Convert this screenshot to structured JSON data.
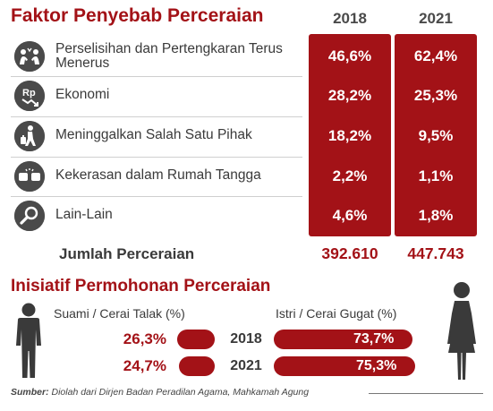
{
  "header": {
    "title": "Faktor Penyebab Perceraian",
    "year_a": "2018",
    "year_b": "2021"
  },
  "chart_data": [
    {
      "type": "table",
      "title": "Faktor Penyebab Perceraian",
      "columns": [
        "2018",
        "2021"
      ],
      "rows": [
        {
          "label": "Perselisihan dan Pertengkaran Terus Menerus",
          "icon": "arguing-people-icon",
          "values": [
            "46,6%",
            "62,4%"
          ]
        },
        {
          "label": "Ekonomi",
          "icon": "money-rp-down-icon",
          "values": [
            "28,2%",
            "25,3%"
          ]
        },
        {
          "label": "Meninggalkan Salah Satu Pihak",
          "icon": "person-leaving-suitcase-icon",
          "values": [
            "18,2%",
            "9,5%"
          ]
        },
        {
          "label": "Kekerasan dalam Rumah Tangga",
          "icon": "fist-punch-icon",
          "values": [
            "2,2%",
            "1,1%"
          ]
        },
        {
          "label": "Lain-Lain",
          "icon": "magnifier-icon",
          "values": [
            "4,6%",
            "1,8%"
          ]
        }
      ],
      "total": {
        "label": "Jumlah Perceraian",
        "values": [
          "392.610",
          "447.743"
        ]
      }
    },
    {
      "type": "bar",
      "title": "Inisiatif Permohonan Perceraian",
      "categories": [
        "2018",
        "2021"
      ],
      "unit": "%",
      "series": [
        {
          "name": "Suami / Cerai Talak (%)",
          "values": [
            26.3,
            24.7
          ],
          "labels": [
            "26,3%",
            "24,7%"
          ]
        },
        {
          "name": "Istri / Cerai Gugat (%)",
          "values": [
            73.7,
            75.3
          ],
          "labels": [
            "73,7%",
            "75,3%"
          ]
        }
      ]
    }
  ],
  "colors": {
    "accent": "#a31217",
    "text": "#3a3a3a",
    "icon": "#4a4a4a"
  },
  "icons": {
    "husband": "man-silhouette-icon",
    "wife": "woman-silhouette-icon"
  },
  "footer": {
    "source_label": "Sumber:",
    "source_text": "Diolah dari Dirjen Badan Peradilan Agama, Mahkamah Agung"
  }
}
